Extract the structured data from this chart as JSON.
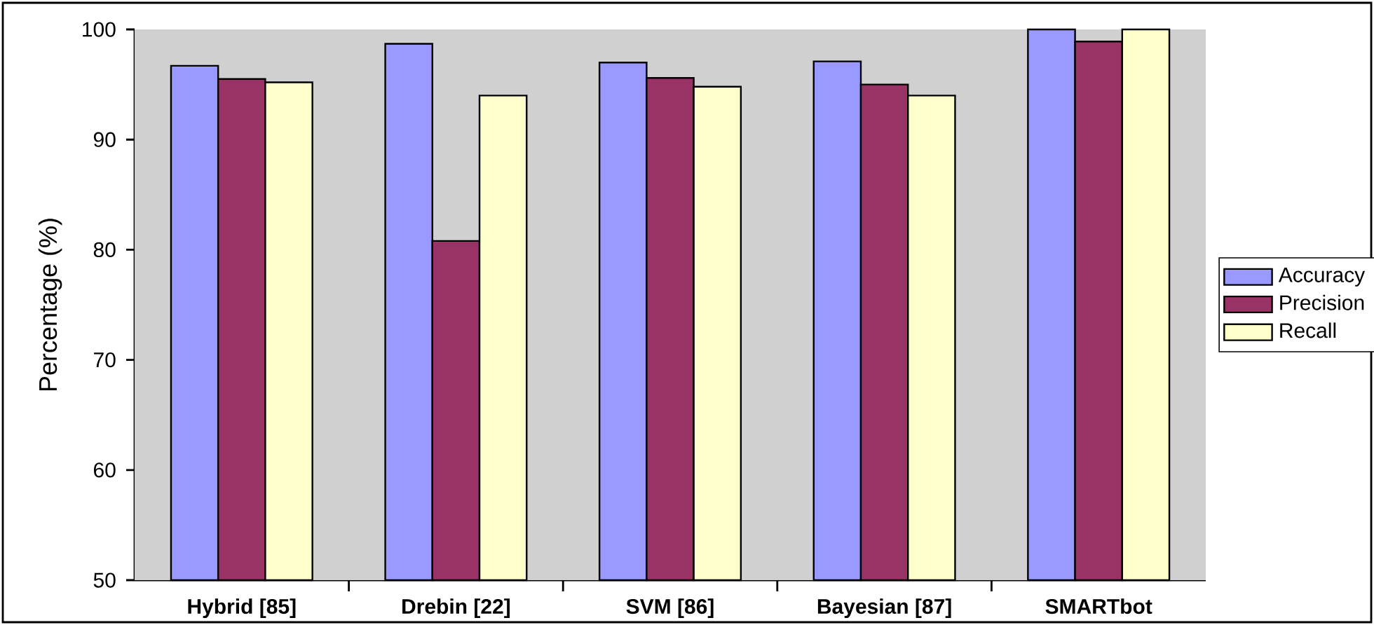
{
  "chart_data": {
    "type": "bar",
    "ylabel": "Percentage (%)",
    "categories": [
      "Hybrid [85]",
      "Drebin [22]",
      "SVM [86]",
      "Bayesian [87]",
      "SMARTbot"
    ],
    "series": [
      {
        "name": "Accuracy",
        "color": "#9999ff",
        "values": [
          96.7,
          98.7,
          97.0,
          97.1,
          100
        ]
      },
      {
        "name": "Precision",
        "color": "#993366",
        "values": [
          95.5,
          80.8,
          95.6,
          95.0,
          98.9
        ]
      },
      {
        "name": "Recall",
        "color": "#ffffcc",
        "values": [
          95.2,
          94.0,
          94.8,
          94.0,
          100
        ]
      }
    ],
    "ylim": [
      50,
      100
    ],
    "yticks": [
      50,
      60,
      70,
      80,
      90,
      100
    ],
    "legend": "right"
  }
}
